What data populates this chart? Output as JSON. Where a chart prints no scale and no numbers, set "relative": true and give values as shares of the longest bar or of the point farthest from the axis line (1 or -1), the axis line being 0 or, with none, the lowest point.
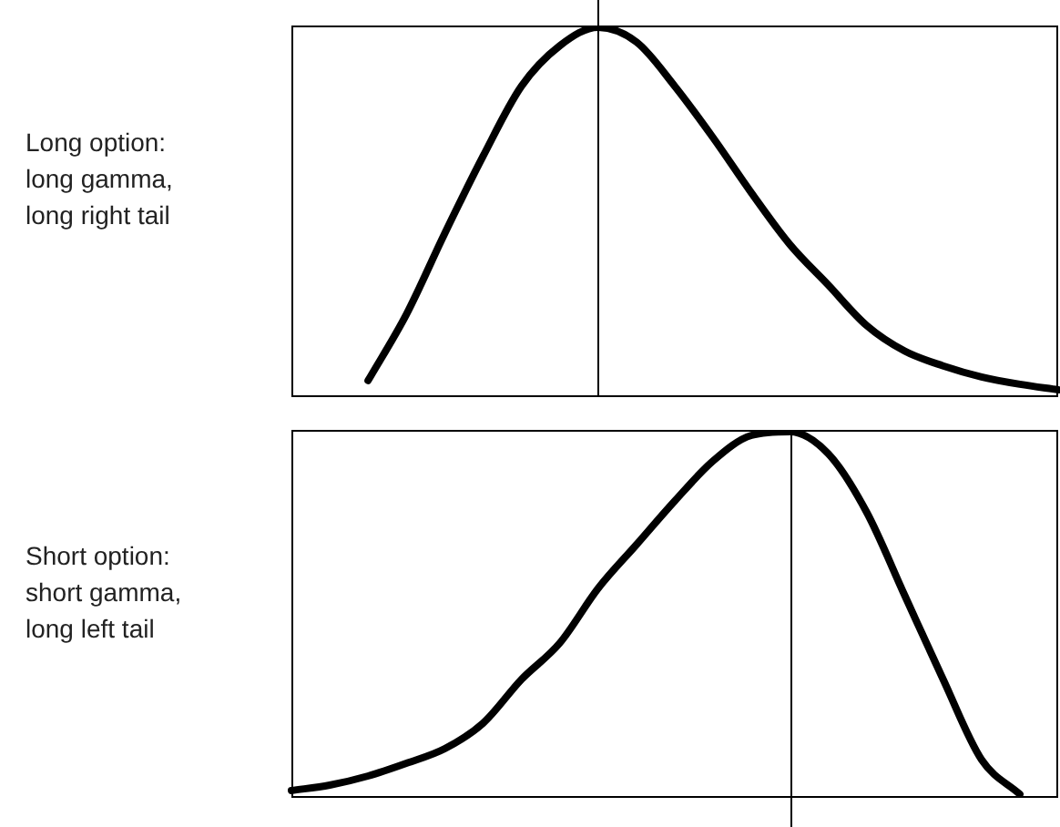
{
  "chart_data": [
    {
      "type": "line",
      "title": "Long option: long gamma, long right tail",
      "relative": true,
      "tick_labels": false,
      "marker": "none",
      "line_style": "solid",
      "categories": [
        null,
        null,
        null,
        null,
        null,
        null,
        null,
        null,
        null,
        null,
        null,
        null,
        null,
        null,
        null,
        null,
        null,
        null,
        null,
        null,
        null
      ],
      "series": [
        {
          "color": "#000000",
          "values": [
            null,
            null,
            0.04,
            0.22,
            0.44,
            0.65,
            0.84,
            0.95,
            1,
            0.96,
            0.84,
            0.7,
            0.55,
            0.41,
            0.3,
            0.19,
            0.12,
            0.08,
            0.05,
            0.03,
            0.015
          ]
        }
      ]
    },
    {
      "type": "line",
      "title": "Short option: short gamma, long left tail",
      "relative": true,
      "tick_labels": false,
      "marker": "none",
      "line_style": "solid",
      "categories": [
        null,
        null,
        null,
        null,
        null,
        null,
        null,
        null,
        null,
        null,
        null,
        null,
        null,
        null,
        null,
        null,
        null,
        null,
        null,
        null,
        null
      ],
      "series": [
        {
          "color": "#000000",
          "values": [
            0.015,
            0.03,
            0.055,
            0.09,
            0.13,
            0.2,
            0.32,
            0.42,
            0.57,
            0.69,
            0.81,
            0.92,
            0.99,
            1,
            0.94,
            0.78,
            0.55,
            0.32,
            0.1,
            0.005,
            null
          ]
        }
      ]
    }
  ]
}
